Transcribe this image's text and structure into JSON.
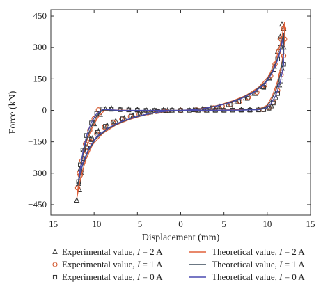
{
  "chart_data": {
    "type": "scatter",
    "xlabel": "Displacement (mm)",
    "ylabel": "Force (kN)",
    "xlim": [
      -15,
      15
    ],
    "ylim": [
      -500,
      480
    ],
    "xticks": [
      -15,
      -10,
      -5,
      0,
      5,
      10,
      15
    ],
    "yticks": [
      450,
      300,
      150,
      0,
      -150,
      -300,
      -450
    ],
    "grid": false,
    "legend_position": "bottom",
    "legend": [
      {
        "marker": "triangle",
        "prefix": "Experimental value, ",
        "var": "I",
        "value": " = 2 A",
        "color": "#333333"
      },
      {
        "marker": "line",
        "prefix": "Theoretical value, ",
        "var": "I",
        "value": " = 2 A",
        "color": "#e0603a"
      },
      {
        "marker": "circle",
        "prefix": "Experimental value, ",
        "var": "I",
        "value": " = 1 A",
        "color": "#d2552a"
      },
      {
        "marker": "line",
        "prefix": "Theoretical value, ",
        "var": "I",
        "value": " = 1 A",
        "color": "#3a4a5a"
      },
      {
        "marker": "square",
        "prefix": "Experimental value, ",
        "var": "I",
        "value": " = 0 A",
        "color": "#333333"
      },
      {
        "marker": "line",
        "prefix": "Theoretical value, ",
        "var": "I",
        "value": " = 0 A",
        "color": "#4a4ab0"
      }
    ],
    "series": [
      {
        "name": "Experimental value, I = 2 A",
        "kind": "scatter",
        "marker": "triangle",
        "color": "#333333",
        "points": [
          [
            -12,
            -430
          ],
          [
            -11.7,
            -380
          ],
          [
            -11.5,
            -300
          ],
          [
            -11.2,
            -230
          ],
          [
            -10.8,
            -175
          ],
          [
            -10.2,
            -135
          ],
          [
            -9.5,
            -100
          ],
          [
            -8.5,
            -72
          ],
          [
            -7.5,
            -52
          ],
          [
            -6.5,
            -38
          ],
          [
            -5.5,
            -26
          ],
          [
            -4.5,
            -16
          ],
          [
            -3.5,
            -9
          ],
          [
            -2.5,
            -4
          ],
          [
            -1.5,
            -1
          ],
          [
            0,
            0
          ],
          [
            1.5,
            2
          ],
          [
            2.5,
            5
          ],
          [
            3.5,
            10
          ],
          [
            4.5,
            17
          ],
          [
            5.5,
            27
          ],
          [
            6.5,
            40
          ],
          [
            7.5,
            58
          ],
          [
            8.5,
            80
          ],
          [
            9.5,
            112
          ],
          [
            10.2,
            155
          ],
          [
            10.8,
            210
          ],
          [
            11.2,
            280
          ],
          [
            11.5,
            350
          ],
          [
            11.7,
            410
          ],
          [
            11.9,
            390
          ],
          [
            11.9,
            300
          ],
          [
            11.7,
            200
          ],
          [
            11.4,
            120
          ],
          [
            11,
            60
          ],
          [
            10.5,
            20
          ],
          [
            10,
            5
          ],
          [
            9,
            3
          ],
          [
            8,
            2
          ],
          [
            7,
            2
          ],
          [
            6,
            1
          ],
          [
            5,
            1
          ],
          [
            4,
            1
          ],
          [
            3,
            0
          ],
          [
            2,
            0
          ],
          [
            1,
            0
          ],
          [
            -1,
            0
          ],
          [
            -2,
            0
          ],
          [
            -3,
            0
          ],
          [
            -4,
            1
          ],
          [
            -5,
            2
          ],
          [
            -6,
            4
          ],
          [
            -7,
            6
          ],
          [
            -8,
            8
          ],
          [
            -8.7,
            5
          ],
          [
            -9.3,
            -20
          ],
          [
            -10,
            -65
          ],
          [
            -10.7,
            -120
          ],
          [
            -11.2,
            -190
          ],
          [
            -11.6,
            -280
          ],
          [
            -11.8,
            -350
          ]
        ]
      },
      {
        "name": "Experimental value, I = 1 A",
        "kind": "scatter",
        "marker": "circle",
        "color": "#d2552a",
        "points": [
          [
            -11.9,
            -370
          ],
          [
            -11.6,
            -310
          ],
          [
            -11.3,
            -250
          ],
          [
            -10.9,
            -195
          ],
          [
            -10.4,
            -150
          ],
          [
            -9.7,
            -112
          ],
          [
            -8.8,
            -80
          ],
          [
            -7.8,
            -58
          ],
          [
            -6.8,
            -42
          ],
          [
            -5.8,
            -29
          ],
          [
            -4.8,
            -19
          ],
          [
            -3.8,
            -11
          ],
          [
            -2.8,
            -5
          ],
          [
            -1.8,
            -2
          ],
          [
            0,
            0
          ],
          [
            1.8,
            2
          ],
          [
            2.8,
            5
          ],
          [
            3.8,
            11
          ],
          [
            4.8,
            19
          ],
          [
            5.8,
            29
          ],
          [
            6.8,
            43
          ],
          [
            7.8,
            62
          ],
          [
            8.8,
            86
          ],
          [
            9.7,
            120
          ],
          [
            10.4,
            165
          ],
          [
            10.9,
            220
          ],
          [
            11.3,
            280
          ],
          [
            11.6,
            340
          ],
          [
            11.9,
            390
          ],
          [
            12,
            340
          ],
          [
            11.9,
            260
          ],
          [
            11.6,
            170
          ],
          [
            11.2,
            95
          ],
          [
            10.7,
            40
          ],
          [
            10.2,
            12
          ],
          [
            9.5,
            4
          ],
          [
            -9.5,
            2
          ],
          [
            -10,
            -40
          ],
          [
            -10.5,
            -95
          ],
          [
            -11,
            -160
          ],
          [
            -11.4,
            -240
          ],
          [
            -11.7,
            -300
          ]
        ]
      },
      {
        "name": "Experimental value, I = 0 A",
        "kind": "scatter",
        "marker": "square",
        "color": "#333333",
        "points": [
          [
            -11.8,
            -340
          ],
          [
            -11.5,
            -285
          ],
          [
            -11.2,
            -230
          ],
          [
            -10.8,
            -180
          ],
          [
            -10.3,
            -140
          ],
          [
            -9.6,
            -105
          ],
          [
            -8.7,
            -76
          ],
          [
            -7.7,
            -55
          ],
          [
            -6.7,
            -40
          ],
          [
            -5.7,
            -28
          ],
          [
            -4.7,
            -18
          ],
          [
            -3.7,
            -10
          ],
          [
            -2.7,
            -5
          ],
          [
            -1.7,
            -2
          ],
          [
            0,
            0
          ],
          [
            1.7,
            2
          ],
          [
            2.7,
            5
          ],
          [
            3.7,
            10
          ],
          [
            4.7,
            18
          ],
          [
            5.7,
            27
          ],
          [
            6.7,
            40
          ],
          [
            7.7,
            57
          ],
          [
            8.7,
            80
          ],
          [
            9.6,
            110
          ],
          [
            10.3,
            150
          ],
          [
            10.8,
            195
          ],
          [
            11.2,
            245
          ],
          [
            11.5,
            300
          ],
          [
            11.8,
            360
          ],
          [
            11.9,
            220
          ],
          [
            11.6,
            140
          ],
          [
            11.2,
            80
          ],
          [
            10.7,
            35
          ],
          [
            10.2,
            10
          ],
          [
            9.6,
            3
          ],
          [
            9,
            2
          ],
          [
            8,
            1
          ],
          [
            7,
            1
          ],
          [
            6,
            1
          ],
          [
            5,
            0
          ],
          [
            4,
            0
          ],
          [
            3,
            0
          ],
          [
            2,
            0
          ],
          [
            1,
            0
          ],
          [
            -1,
            0
          ],
          [
            -2,
            0
          ],
          [
            -3,
            0
          ],
          [
            -4,
            0
          ],
          [
            -5,
            1
          ],
          [
            -6,
            2
          ],
          [
            -7,
            3
          ],
          [
            -8,
            5
          ],
          [
            -9,
            7
          ],
          [
            -9.7,
            -15
          ],
          [
            -10.3,
            -60
          ],
          [
            -10.9,
            -120
          ],
          [
            -11.3,
            -190
          ],
          [
            -11.6,
            -260
          ]
        ]
      },
      {
        "name": "Theoretical value, I = 2 A",
        "kind": "line",
        "color": "#e0603a",
        "points": [
          [
            -12,
            -420
          ],
          [
            -11.6,
            -330
          ],
          [
            -11,
            -240
          ],
          [
            -10.2,
            -165
          ],
          [
            -9,
            -110
          ],
          [
            -7.5,
            -70
          ],
          [
            -6,
            -45
          ],
          [
            -4.5,
            -26
          ],
          [
            -3,
            -12
          ],
          [
            -1.5,
            -4
          ],
          [
            0,
            0
          ],
          [
            1.5,
            4
          ],
          [
            3,
            12
          ],
          [
            4.5,
            26
          ],
          [
            6,
            45
          ],
          [
            7.5,
            70
          ],
          [
            9,
            110
          ],
          [
            10.2,
            165
          ],
          [
            11,
            240
          ],
          [
            11.6,
            330
          ],
          [
            12,
            420
          ],
          [
            12,
            330
          ],
          [
            11.7,
            230
          ],
          [
            11.2,
            140
          ],
          [
            10.6,
            70
          ],
          [
            10,
            25
          ],
          [
            9.2,
            8
          ],
          [
            8,
            4
          ],
          [
            5,
            2
          ],
          [
            0,
            0
          ],
          [
            -5,
            -1
          ],
          [
            -8,
            2
          ],
          [
            -8.8,
            0
          ],
          [
            -9.5,
            -30
          ],
          [
            -10.2,
            -80
          ],
          [
            -10.9,
            -150
          ],
          [
            -11.5,
            -250
          ],
          [
            -12,
            -420
          ]
        ]
      },
      {
        "name": "Theoretical value, I = 1 A",
        "kind": "line",
        "color": "#3a4a5a",
        "points": [
          [
            -11.9,
            -360
          ],
          [
            -11.4,
            -270
          ],
          [
            -10.7,
            -195
          ],
          [
            -9.8,
            -135
          ],
          [
            -8.5,
            -90
          ],
          [
            -7,
            -58
          ],
          [
            -5.5,
            -36
          ],
          [
            -4,
            -20
          ],
          [
            -2.5,
            -8
          ],
          [
            -1,
            -2
          ],
          [
            0,
            0
          ],
          [
            1,
            2
          ],
          [
            2.5,
            8
          ],
          [
            4,
            20
          ],
          [
            5.5,
            36
          ],
          [
            7,
            58
          ],
          [
            8.5,
            90
          ],
          [
            9.8,
            135
          ],
          [
            10.7,
            195
          ],
          [
            11.4,
            270
          ],
          [
            11.9,
            370
          ],
          [
            11.9,
            270
          ],
          [
            11.5,
            170
          ],
          [
            11,
            95
          ],
          [
            10.4,
            42
          ],
          [
            9.8,
            14
          ],
          [
            9,
            5
          ],
          [
            7,
            2
          ],
          [
            0,
            0
          ],
          [
            -7,
            -1
          ],
          [
            -9,
            2
          ],
          [
            -9.6,
            -20
          ],
          [
            -10.2,
            -65
          ],
          [
            -10.8,
            -130
          ],
          [
            -11.3,
            -210
          ],
          [
            -11.9,
            -360
          ]
        ]
      },
      {
        "name": "Theoretical value, I = 0 A",
        "kind": "line",
        "color": "#4a4ab0",
        "points": [
          [
            -11.8,
            -330
          ],
          [
            -11.3,
            -250
          ],
          [
            -10.6,
            -180
          ],
          [
            -9.7,
            -125
          ],
          [
            -8.4,
            -84
          ],
          [
            -6.9,
            -54
          ],
          [
            -5.4,
            -33
          ],
          [
            -3.9,
            -18
          ],
          [
            -2.4,
            -7
          ],
          [
            -1,
            -2
          ],
          [
            0,
            0
          ],
          [
            1,
            2
          ],
          [
            2.4,
            7
          ],
          [
            3.9,
            18
          ],
          [
            5.4,
            33
          ],
          [
            6.9,
            54
          ],
          [
            8.4,
            84
          ],
          [
            9.7,
            125
          ],
          [
            10.6,
            180
          ],
          [
            11.3,
            250
          ],
          [
            11.8,
            340
          ],
          [
            11.9,
            220
          ],
          [
            11.5,
            135
          ],
          [
            11,
            72
          ],
          [
            10.4,
            30
          ],
          [
            9.8,
            9
          ],
          [
            9,
            3
          ],
          [
            7,
            1
          ],
          [
            0,
            0
          ],
          [
            -7,
            0
          ],
          [
            -9,
            5
          ],
          [
            -9.8,
            -20
          ],
          [
            -10.4,
            -65
          ],
          [
            -10.9,
            -125
          ],
          [
            -11.3,
            -200
          ],
          [
            -11.8,
            -330
          ]
        ]
      }
    ]
  }
}
